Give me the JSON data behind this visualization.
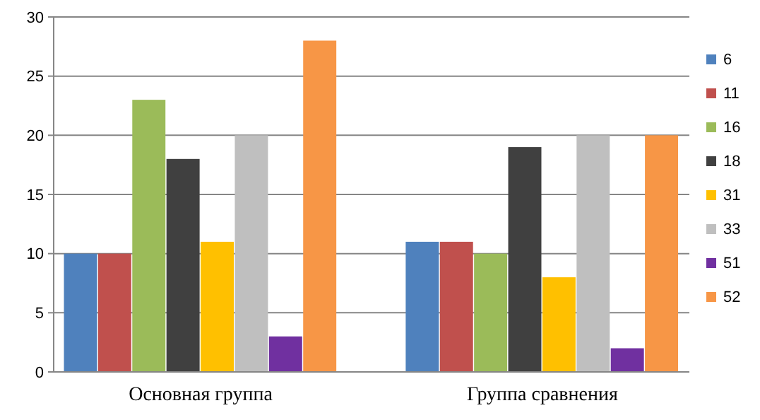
{
  "chart_data": {
    "type": "bar",
    "categories": [
      "Основная группа",
      "Группа сравнения"
    ],
    "series": [
      {
        "name": "6",
        "color": "#4f81bd",
        "values": [
          10,
          11
        ]
      },
      {
        "name": "11",
        "color": "#c0504d",
        "values": [
          10,
          11
        ]
      },
      {
        "name": "16",
        "color": "#9bbb59",
        "values": [
          23,
          10
        ]
      },
      {
        "name": "18",
        "color": "#404040",
        "values": [
          18,
          19
        ]
      },
      {
        "name": "31",
        "color": "#ffc000",
        "values": [
          11,
          8
        ]
      },
      {
        "name": "33",
        "color": "#bfbfbf",
        "values": [
          20,
          20
        ]
      },
      {
        "name": "51",
        "color": "#7030a0",
        "values": [
          3,
          2
        ]
      },
      {
        "name": "52",
        "color": "#f79646",
        "values": [
          28,
          20
        ]
      }
    ],
    "ylim": [
      0,
      30
    ],
    "yticks": [
      0,
      5,
      10,
      15,
      20,
      25,
      30
    ],
    "grid": "y",
    "legend": "right"
  }
}
